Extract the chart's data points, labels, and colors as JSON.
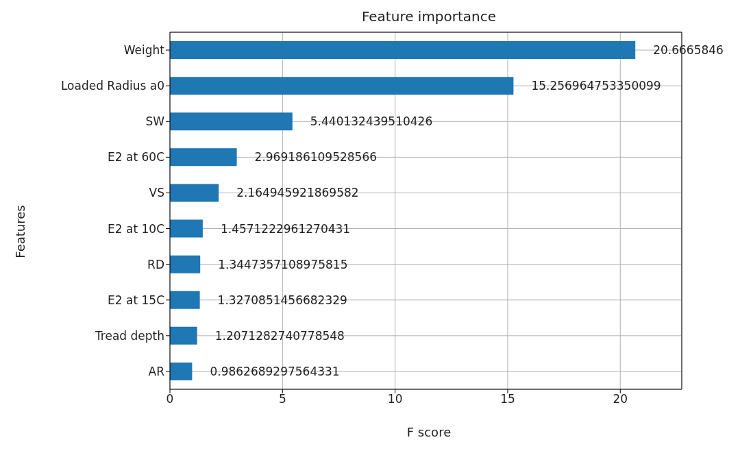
{
  "chart_data": {
    "type": "bar",
    "orientation": "horizontal",
    "title": "Feature importance",
    "xlabel": "F score",
    "ylabel": "Features",
    "categories": [
      "Weight",
      "Loaded Radius a0",
      "SW",
      "E2 at 60C",
      "VS",
      "E2 at 10C",
      "RD",
      "E2 at 15C",
      "Tread depth",
      "AR"
    ],
    "values": [
      20.6665846,
      15.256964753350099,
      5.440132439510426,
      2.969186109528566,
      2.164945921869582,
      1.4571222961270431,
      1.3447357108975815,
      1.3270851456682329,
      1.2071282740778548,
      0.9862689297564331
    ],
    "color": "#1f77b4",
    "xlim": [
      0,
      22.73
    ],
    "xticks": [
      0,
      5,
      10,
      15,
      20
    ],
    "grid": true,
    "data_labels": true,
    "legend": false
  }
}
